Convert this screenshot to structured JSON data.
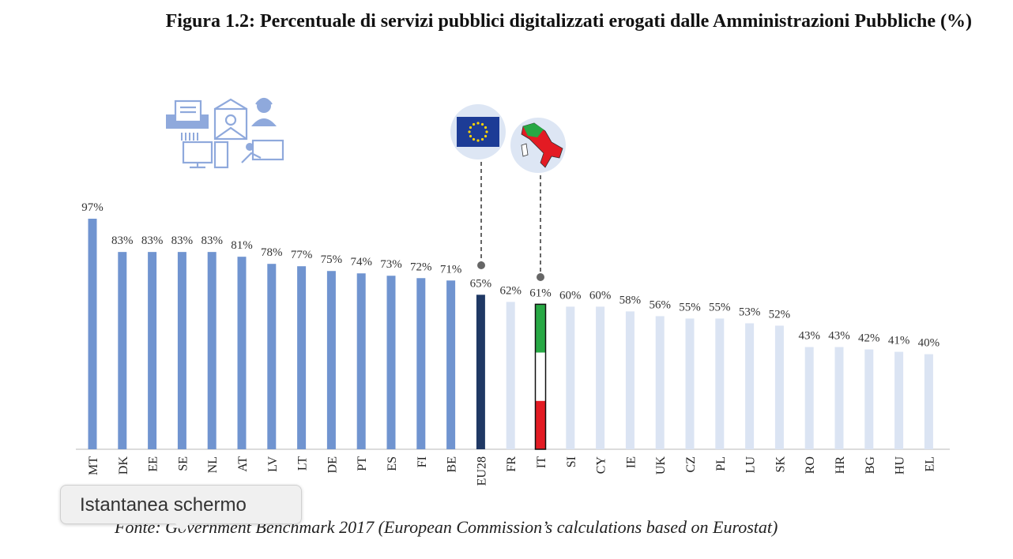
{
  "title": "Figura 1.2: Percentuale di servizi pubblici digitalizzati erogati dalle Amministrazioni Pubbliche (%)",
  "source": "Fonte: Government Benchmark 2017 (European Commission’s calculations based on Eurostat)",
  "tooltip": "Istantanea schermo",
  "icons": [
    "public-services-illustration",
    "eu-flag-icon",
    "italy-map-icon"
  ],
  "colors": {
    "above_eu": "#7094d0",
    "eu28": "#1f3864",
    "below_eu": "#dbe4f3",
    "italy_green": "#27a844",
    "italy_red": "#e31b23"
  },
  "chart_data": {
    "type": "bar",
    "title": "",
    "xlabel": "",
    "ylabel": "",
    "ylim": [
      0,
      100
    ],
    "grid": false,
    "categories": [
      "MT",
      "DK",
      "EE",
      "SE",
      "NL",
      "AT",
      "LV",
      "LT",
      "DE",
      "PT",
      "ES",
      "FI",
      "BE",
      "EU28",
      "FR",
      "IT",
      "SI",
      "CY",
      "IE",
      "UK",
      "CZ",
      "PL",
      "LU",
      "SK",
      "RO",
      "HR",
      "BG",
      "HU",
      "EL"
    ],
    "values": [
      97,
      83,
      83,
      83,
      83,
      81,
      78,
      77,
      75,
      74,
      73,
      72,
      71,
      65,
      62,
      61,
      60,
      60,
      58,
      56,
      55,
      55,
      53,
      52,
      43,
      43,
      42,
      41,
      40
    ],
    "value_labels": [
      "97%",
      "83%",
      "83%",
      "83%",
      "83%",
      "81%",
      "78%",
      "77%",
      "75%",
      "74%",
      "73%",
      "72%",
      "71%",
      "65%",
      "62%",
      "61%",
      "60%",
      "60%",
      "58%",
      "56%",
      "55%",
      "55%",
      "53%",
      "52%",
      "43%",
      "43%",
      "42%",
      "41%",
      "40%"
    ]
  }
}
